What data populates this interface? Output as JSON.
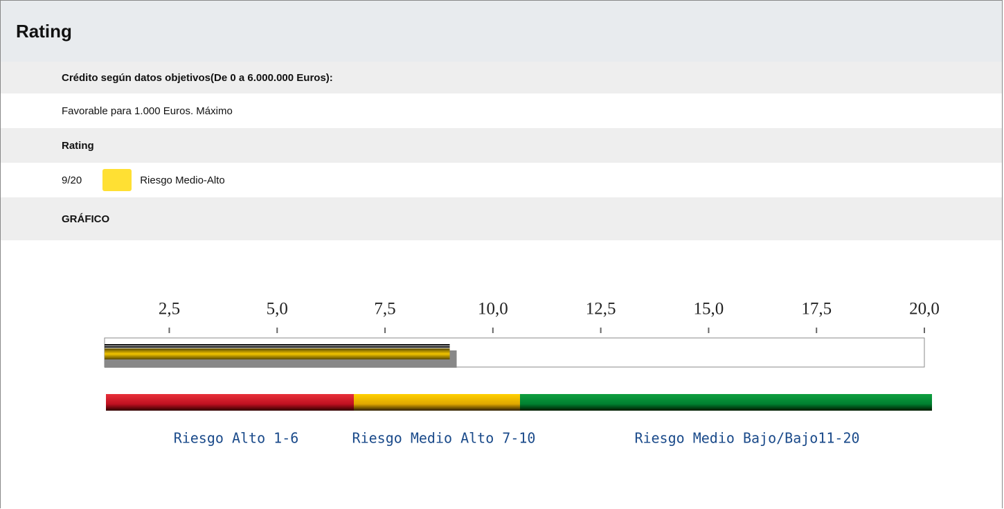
{
  "header": {
    "title": "Rating"
  },
  "sections": [
    {
      "label": "Crédito según datos objetivos(De 0 a 6.000.000 Euros):",
      "text": "Favorable para 1.000 Euros. Máximo"
    },
    {
      "label": "Rating",
      "score": "9/20",
      "color": "#ffe033",
      "text": "Riesgo Medio-Alto"
    },
    {
      "label": "GRÁFICO"
    }
  ],
  "chart_data": {
    "type": "hbar",
    "value": 9,
    "color": "#f2c400",
    "xlim": [
      1,
      20
    ],
    "xticks": [
      {
        "value": 2.5,
        "label": "2,5"
      },
      {
        "value": 5,
        "label": "5,0"
      },
      {
        "value": 7.5,
        "label": "7,5"
      },
      {
        "value": 10,
        "label": "10,0"
      },
      {
        "value": 12.5,
        "label": "12,5"
      },
      {
        "value": 15,
        "label": "15,0"
      },
      {
        "value": 17.5,
        "label": "17,5"
      },
      {
        "value": 20,
        "label": "20,0"
      }
    ],
    "legend": [
      "Riesgo Alto 1-6",
      "Riesgo Medio Alto 7-10",
      "Riesgo Medio Bajo/Bajo11-20"
    ]
  }
}
